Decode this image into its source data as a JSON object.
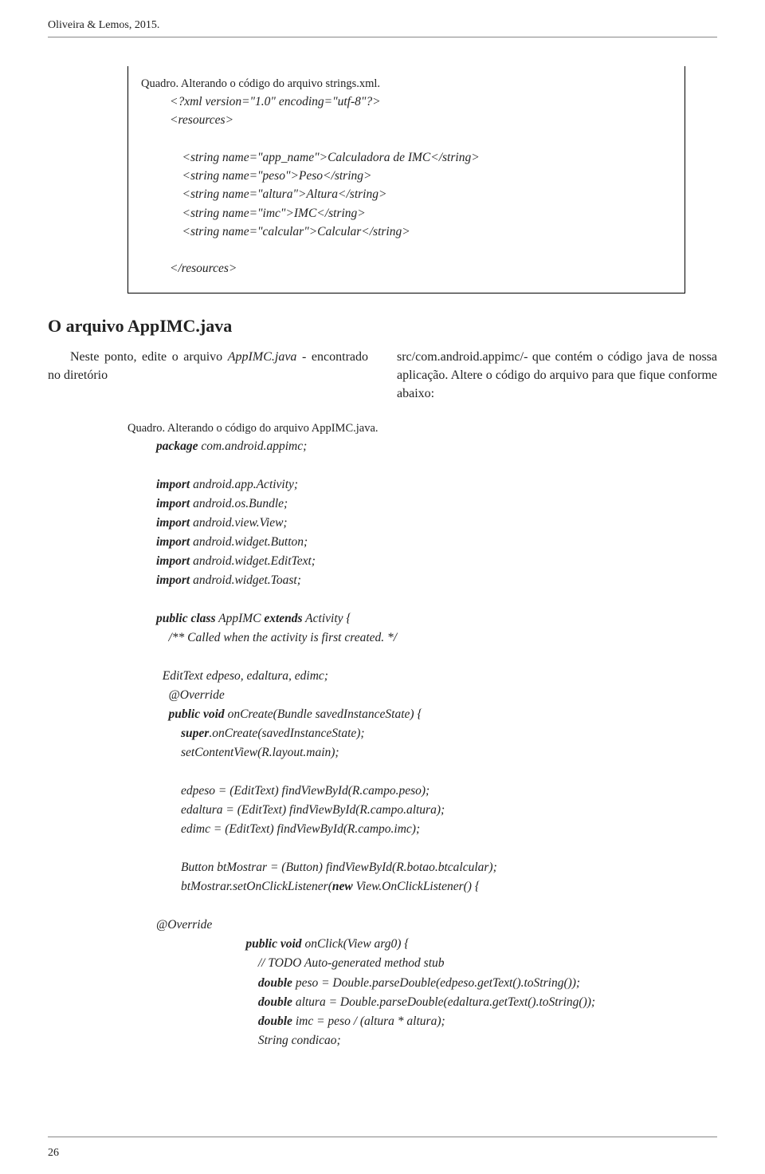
{
  "header": {
    "citation": "Oliveira & Lemos, 2015."
  },
  "quadro1": {
    "title": "Quadro. Alterando o código do arquivo strings.xml.",
    "code": "<?xml version=\"1.0\" encoding=\"utf-8\"?>\n<resources>\n\n    <string name=\"app_name\">Calculadora de IMC</string>\n    <string name=\"peso\">Peso</string>\n    <string name=\"altura\">Altura</string>\n    <string name=\"imc\">IMC</string>\n    <string name=\"calcular\">Calcular</string>\n\n</resources>"
  },
  "section_heading": "O arquivo AppIMC.java",
  "para_left_pre": "Neste ponto, edite o arquivo ",
  "para_left_em": "AppIMC.java",
  "para_left_post": " - encontrado no diretório",
  "para_right": "src/com.android.appimc/- que contém o código java de nossa aplicação. Altere o código do arquivo para que fique conforme abaixo:",
  "quadro2": {
    "title": "Quadro. Alterando o código do arquivo AppIMC.java.",
    "l1a": "package",
    "l1b": " com.android.appimc;",
    "imp": "import",
    "i1": " android.app.Activity;",
    "i2": " android.os.Bundle;",
    "i3": " android.view.View;",
    "i4": " android.widget.Button;",
    "i5": " android.widget.EditText;",
    "i6": " android.widget.Toast;",
    "c1a": "public class",
    "c1b": " AppIMC ",
    "c1c": "extends",
    "c1d": " Activity {",
    "c2": "    /** Called when the activity is first created. */",
    "c3": "  EditText edpeso, edaltura, edimc;",
    "c4": "    @Override",
    "c5a": "    public void",
    "c5b": " onCreate(Bundle savedInstanceState) {",
    "c6a": "        super",
    "c6b": ".onCreate(savedInstanceState);",
    "c7": "        setContentView(R.layout.main);",
    "c8": "        edpeso = (EditText) findViewById(R.campo.peso);",
    "c9": "        edaltura = (EditText) findViewById(R.campo.altura);",
    "c10": "        edimc = (EditText) findViewById(R.campo.imc);",
    "c11": "        Button btMostrar = (Button) findViewById(R.botao.btcalcular);",
    "c12a": "        btMostrar.setOnClickListener(",
    "c12b": "new",
    "c12c": " View.OnClickListener() {",
    "ov": "@Override",
    "m1a": "public void",
    "m1b": " onClick(View arg0) {",
    "m2": "// TODO Auto-generated method stub",
    "m3a": "double",
    "m3b": " peso = Double.parseDouble(edpeso.getText().toString());",
    "m4a": "double",
    "m4b": " altura = Double.parseDouble(edaltura.getText().toString());",
    "m5a": "double",
    "m5b": " imc = peso / (altura * altura);",
    "m6": "String condicao;"
  },
  "page_number": "26",
  "colors": {
    "text": "#222222",
    "rule": "#888888",
    "background": "#ffffff"
  }
}
